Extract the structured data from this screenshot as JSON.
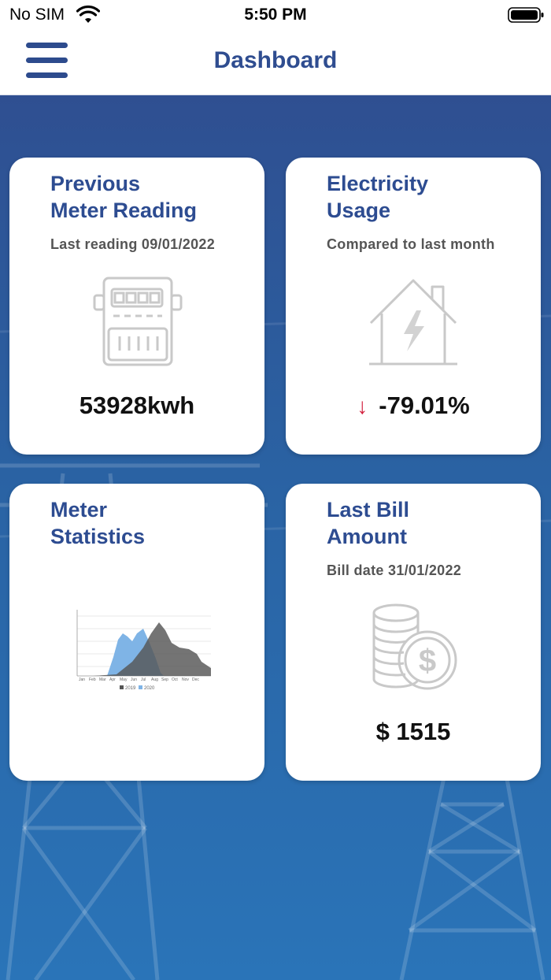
{
  "status_bar": {
    "carrier": "No SIM",
    "time": "5:50 PM"
  },
  "nav": {
    "title": "Dashboard",
    "menu_icon": "hamburger-menu-icon"
  },
  "cards": {
    "meter_reading": {
      "title_line1": "Previous",
      "title_line2": "Meter Reading",
      "subtitle": "Last reading 09/01/2022",
      "value": "53928kwh",
      "icon": "electric-meter-icon"
    },
    "electricity_usage": {
      "title_line1": "Electricity",
      "title_line2": "Usage",
      "subtitle": "Compared to last month",
      "value": "-79.01%",
      "trend": "down",
      "icon": "house-lightning-icon",
      "trend_color": "#d21f3c"
    },
    "meter_statistics": {
      "title_line1": "Meter",
      "title_line2": "Statistics",
      "icon": "area-chart-thumbnail",
      "legend": [
        "2019",
        "2020"
      ]
    },
    "last_bill": {
      "title_line1": "Last Bill",
      "title_line2": "Amount",
      "subtitle": "Bill date 31/01/2022",
      "value": "$ 1515",
      "icon": "coins-dollar-icon"
    }
  },
  "colors": {
    "accent": "#2f4d90",
    "background_top": "#2f4f91",
    "background_bottom": "#2a74b8"
  }
}
